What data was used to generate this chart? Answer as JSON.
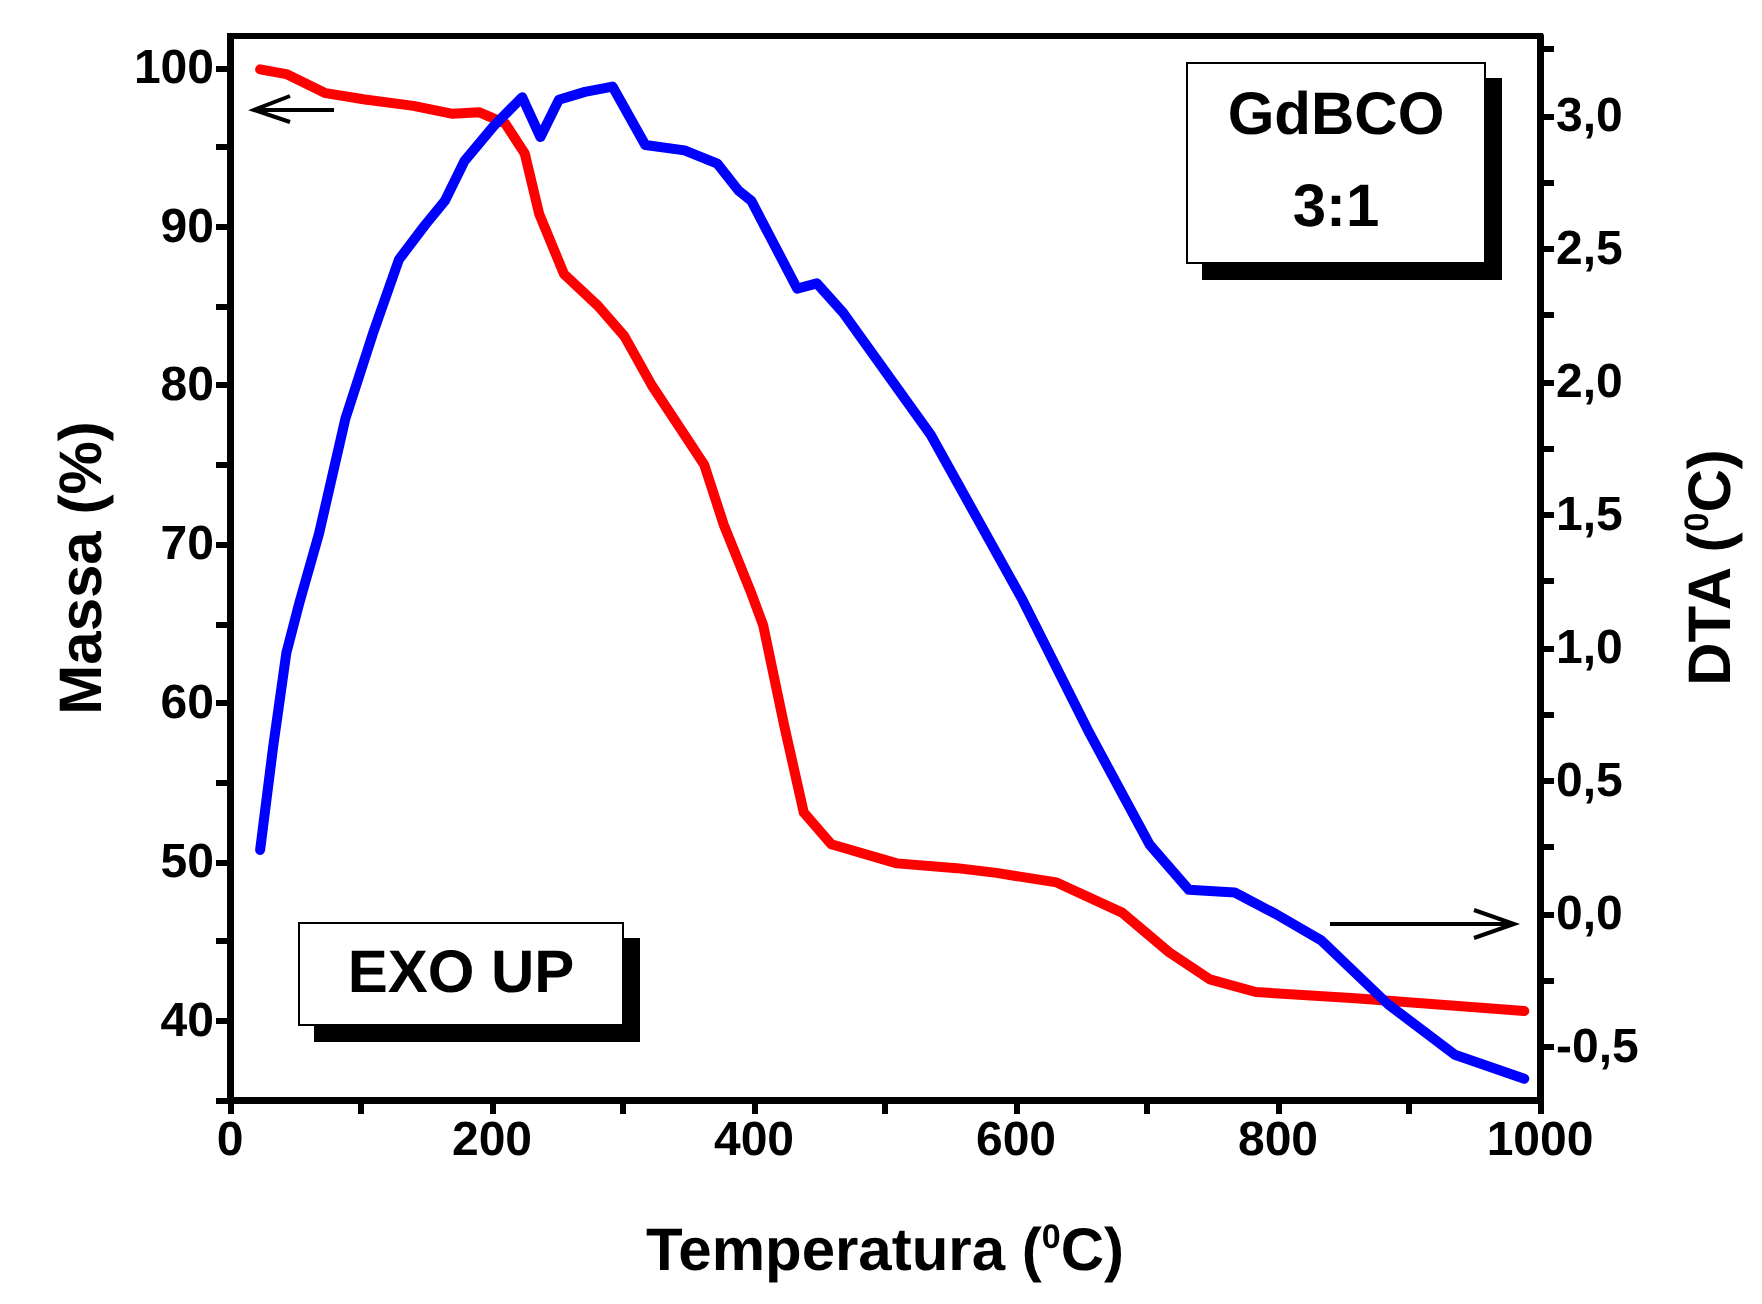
{
  "chart_data": {
    "type": "line",
    "xlabel": "Temperatura ($^{0}$C)",
    "ylabel": "Massa (%)",
    "y2label": "DTA ($^{0}$C)",
    "annotations": [
      "GdBCO 3:1",
      "EXO UP"
    ],
    "xlim": [
      0,
      1000
    ],
    "xticks": [
      0,
      {
        "value": 100,
        "label": null
      },
      200,
      {
        "value": 300,
        "label": null
      },
      400,
      {
        "value": 500,
        "label": null
      },
      600,
      {
        "value": 700,
        "label": null
      },
      800,
      {
        "value": 900,
        "label": null
      },
      1000
    ],
    "ylim": [
      35,
      102
    ],
    "yticks": [
      {
        "value": 35,
        "label": null
      },
      40,
      {
        "value": 45,
        "label": null
      },
      50,
      {
        "value": 55,
        "label": null
      },
      60,
      {
        "value": 65,
        "label": null
      },
      70,
      {
        "value": 75,
        "label": null
      },
      80,
      {
        "value": 85,
        "label": null
      },
      90,
      {
        "value": 95,
        "label": null
      },
      100
    ],
    "y2lim": [
      -0.7,
      3.3
    ],
    "y2ticks": [
      {
        "value": -0.5,
        "label": "-0,5"
      },
      {
        "value": -0.25,
        "label": null
      },
      {
        "value": 0,
        "label": "0,0"
      },
      {
        "value": 0.25,
        "label": null
      },
      {
        "value": 0.5,
        "label": "0,5"
      },
      {
        "value": 0.75,
        "label": null
      },
      {
        "value": 1,
        "label": "1,0"
      },
      {
        "value": 1.25,
        "label": null
      },
      {
        "value": 1.5,
        "label": "1,5"
      },
      {
        "value": 1.75,
        "label": null
      },
      {
        "value": 2,
        "label": "2,0"
      },
      {
        "value": 2.25,
        "label": null
      },
      {
        "value": 2.5,
        "label": "2,5"
      },
      {
        "value": 2.75,
        "label": null
      },
      {
        "value": 3,
        "label": "3,0"
      },
      {
        "value": 3.25,
        "label": null
      }
    ],
    "grid": false,
    "marker": "none",
    "line_style": "solid",
    "series": [
      {
        "color": "#ff0000",
        "x": [
          23,
          43,
          73,
          103,
          140,
          170,
          190,
          210,
          225,
          236,
          255,
          281,
          301,
          322,
          342,
          362,
          377,
          398,
          407,
          423,
          438,
          459,
          509,
          555,
          585,
          631,
          681,
          717,
          748,
          783,
          859,
          988
        ],
        "values": [
          99.9,
          99.6,
          98.4,
          98.0,
          97.6,
          97.1,
          97.2,
          96.5,
          94.6,
          90.8,
          87.0,
          85.0,
          83.1,
          80.0,
          77.5,
          75.0,
          71.2,
          66.9,
          64.9,
          58.6,
          53.1,
          51.1,
          49.9,
          49.6,
          49.3,
          48.7,
          46.8,
          44.3,
          42.6,
          41.8,
          41.4,
          40.6
        ]
      },
      {
        "color": "#0000ff",
        "axis": "y2",
        "x": [
          23,
          33,
          43,
          53,
          68,
          88,
          109,
          129,
          149,
          164,
          179,
          201,
          223,
          237,
          251,
          271,
          292,
          317,
          347,
          372,
          388,
          398,
          433,
          448,
          468,
          535,
          605,
          656,
          702,
          732,
          767,
          798,
          833,
          884,
          935,
          988
        ],
        "values": [
          0.24,
          0.63,
          0.98,
          1.17,
          1.43,
          1.86,
          2.18,
          2.46,
          2.59,
          2.68,
          2.83,
          2.96,
          3.07,
          2.92,
          3.06,
          3.09,
          3.11,
          2.89,
          2.87,
          2.82,
          2.72,
          2.68,
          2.35,
          2.37,
          2.26,
          1.8,
          1.18,
          0.68,
          0.26,
          0.09,
          0.08,
          0.0,
          -0.1,
          -0.34,
          -0.53,
          -0.62
        ]
      }
    ]
  }
}
